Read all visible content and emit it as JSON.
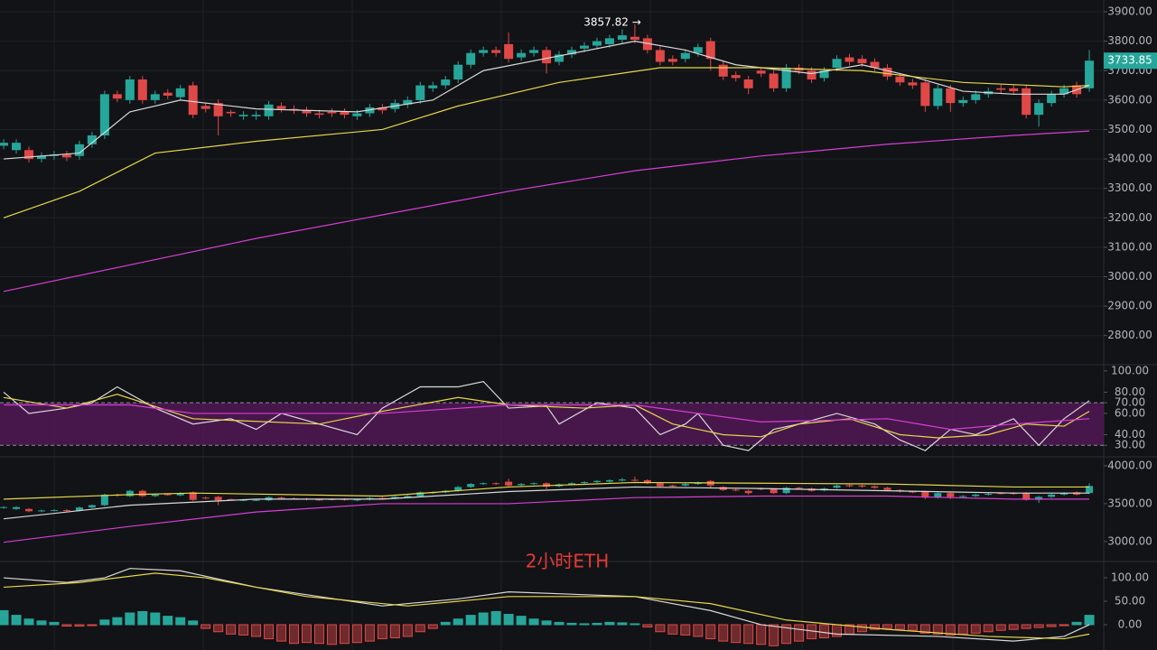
{
  "chart_data": [
    {
      "type": "candlestick",
      "annotation": "3857.82 →",
      "last_price": 3733.85,
      "up_color": "#26a69a",
      "down_color": "#e04848",
      "xlim": [
        -0.29,
        87.14
      ],
      "ylim": [
        2704,
        3940
      ],
      "grid": true,
      "yticks": [
        {
          "value": 2800,
          "label": "2800.00"
        },
        {
          "value": 2900,
          "label": "2900.00"
        },
        {
          "value": 3000,
          "label": "3000.00"
        },
        {
          "value": 3100,
          "label": "3100.00"
        },
        {
          "value": 3200,
          "label": "3200.00"
        },
        {
          "value": 3300,
          "label": "3300.00"
        },
        {
          "value": 3400,
          "label": "3400.00"
        },
        {
          "value": 3500,
          "label": "3500.00"
        },
        {
          "value": 3600,
          "label": "3600.00"
        },
        {
          "value": 3700,
          "label": "3700.00"
        },
        {
          "value": 3800,
          "label": "3800.00"
        },
        {
          "value": 3900,
          "label": "3900.00"
        }
      ],
      "open": [
        3445,
        3430,
        3430,
        3400,
        3410,
        3415,
        3410,
        3450,
        3480,
        3620,
        3600,
        3670,
        3600,
        3625,
        3610,
        3650,
        3580,
        3590,
        3560,
        3545,
        3545,
        3545,
        3580,
        3570,
        3565,
        3555,
        3560,
        3560,
        3545,
        3555,
        3575,
        3570,
        3585,
        3600,
        3640,
        3650,
        3670,
        3720,
        3760,
        3770,
        3790,
        3745,
        3760,
        3770,
        3730,
        3755,
        3775,
        3785,
        3790,
        3805,
        3815,
        3810,
        3770,
        3740,
        3740,
        3760,
        3800,
        3720,
        3685,
        3670,
        3700,
        3690,
        3640,
        3710,
        3700,
        3675,
        3710,
        3745,
        3740,
        3730,
        3710,
        3680,
        3660,
        3660,
        3580,
        3640,
        3590,
        3600,
        3620,
        3640,
        3640,
        3640,
        3550,
        3590,
        3620,
        3650,
        3640
      ],
      "high": [
        3467,
        3467,
        3442,
        3422,
        3427,
        3427,
        3462,
        3492,
        3632,
        3632,
        3682,
        3682,
        3632,
        3637,
        3652,
        3662,
        3592,
        3602,
        3567,
        3562,
        3562,
        3597,
        3592,
        3582,
        3577,
        3567,
        3572,
        3572,
        3567,
        3587,
        3587,
        3602,
        3612,
        3662,
        3662,
        3682,
        3732,
        3772,
        3782,
        3782,
        3830,
        3772,
        3782,
        3782,
        3767,
        3782,
        3797,
        3812,
        3822,
        3840,
        3857.82,
        3822,
        3782,
        3752,
        3772,
        3792,
        3812,
        3732,
        3697,
        3682,
        3712,
        3702,
        3722,
        3722,
        3712,
        3712,
        3752,
        3757,
        3752,
        3742,
        3722,
        3692,
        3672,
        3672,
        3652,
        3652,
        3612,
        3632,
        3642,
        3652,
        3652,
        3652,
        3602,
        3632,
        3652,
        3662,
        3770
      ],
      "low": [
        3433,
        3418,
        3388,
        3388,
        3398,
        3393,
        3398,
        3438,
        3468,
        3593,
        3588,
        3588,
        3588,
        3603,
        3598,
        3538,
        3558,
        3480,
        3543,
        3533,
        3533,
        3533,
        3558,
        3553,
        3543,
        3538,
        3543,
        3538,
        3533,
        3543,
        3553,
        3558,
        3573,
        3588,
        3628,
        3638,
        3658,
        3708,
        3748,
        3748,
        3728,
        3733,
        3748,
        3690,
        3718,
        3743,
        3763,
        3773,
        3778,
        3793,
        3793,
        3758,
        3718,
        3718,
        3728,
        3748,
        3700,
        3668,
        3663,
        3620,
        3678,
        3628,
        3628,
        3688,
        3658,
        3663,
        3698,
        3718,
        3713,
        3698,
        3668,
        3648,
        3638,
        3560,
        3568,
        3560,
        3578,
        3588,
        3608,
        3623,
        3618,
        3538,
        3510,
        3578,
        3608,
        3608,
        3628
      ],
      "close": [
        3455,
        3455,
        3400,
        3410,
        3415,
        3405,
        3450,
        3480,
        3620,
        3605,
        3670,
        3600,
        3620,
        3615,
        3640,
        3550,
        3570,
        3545,
        3555,
        3550,
        3550,
        3585,
        3570,
        3565,
        3555,
        3550,
        3555,
        3550,
        3555,
        3575,
        3565,
        3590,
        3600,
        3650,
        3650,
        3670,
        3720,
        3760,
        3770,
        3760,
        3740,
        3760,
        3770,
        3725,
        3755,
        3770,
        3785,
        3800,
        3810,
        3820,
        3805,
        3770,
        3730,
        3730,
        3760,
        3780,
        3740,
        3680,
        3675,
        3640,
        3690,
        3640,
        3710,
        3700,
        3670,
        3700,
        3740,
        3730,
        3725,
        3710,
        3680,
        3660,
        3650,
        3580,
        3640,
        3590,
        3600,
        3620,
        3630,
        3635,
        3630,
        3550,
        3590,
        3620,
        3640,
        3620,
        3733.85
      ],
      "series": [
        {
          "color": "#d9d9d9",
          "x": [
            0,
            6,
            10,
            14,
            20,
            28,
            34,
            38,
            44,
            50,
            54,
            58,
            64,
            68,
            72,
            76,
            80,
            84,
            86
          ],
          "values": [
            3400,
            3420,
            3560,
            3600,
            3570,
            3560,
            3600,
            3700,
            3750,
            3800,
            3770,
            3720,
            3690,
            3720,
            3680,
            3630,
            3620,
            3620,
            3650
          ]
        },
        {
          "color": "#e6d84a",
          "x": [
            0,
            6,
            12,
            20,
            30,
            36,
            44,
            52,
            60,
            68,
            76,
            84,
            86
          ],
          "values": [
            3200,
            3290,
            3420,
            3460,
            3500,
            3580,
            3660,
            3710,
            3710,
            3700,
            3660,
            3645,
            3650
          ]
        },
        {
          "color": "#d63ed6",
          "x": [
            0,
            10,
            20,
            30,
            40,
            50,
            60,
            70,
            80,
            86
          ],
          "values": [
            2950,
            3040,
            3130,
            3210,
            3290,
            3360,
            3410,
            3450,
            3480,
            3495
          ]
        }
      ]
    },
    {
      "type": "rsi",
      "xlim": [
        -0.29,
        87.14
      ],
      "ylim": [
        20,
        105
      ],
      "band": [
        30,
        70
      ],
      "yticks": [
        {
          "value": 30,
          "label": "30.00"
        },
        {
          "value": 40,
          "label": "40.00"
        },
        {
          "value": 60,
          "label": "60.00"
        },
        {
          "value": 70,
          "label": "70.00"
        },
        {
          "value": 80,
          "label": "80.00"
        },
        {
          "value": 100,
          "label": "100.00"
        }
      ],
      "series": [
        {
          "color": "#d9d9d9",
          "x": [
            0,
            2,
            5,
            7,
            9,
            12,
            15,
            18,
            20,
            22,
            25,
            28,
            30,
            33,
            36,
            38,
            40,
            43,
            44,
            47,
            50,
            52,
            54,
            55,
            57,
            59,
            61,
            63,
            66,
            69,
            71,
            73,
            75,
            77,
            80,
            82,
            84,
            86
          ],
          "values": [
            80,
            60,
            65,
            70,
            85,
            65,
            50,
            55,
            45,
            60,
            50,
            40,
            65,
            85,
            85,
            90,
            65,
            67,
            50,
            70,
            65,
            40,
            50,
            60,
            30,
            25,
            45,
            50,
            60,
            50,
            35,
            25,
            45,
            40,
            55,
            30,
            55,
            72
          ]
        },
        {
          "color": "#e6d84a",
          "x": [
            0,
            5,
            9,
            15,
            25,
            30,
            36,
            40,
            46,
            50,
            53,
            57,
            60,
            63,
            67,
            71,
            74,
            78,
            81,
            84,
            86
          ],
          "values": [
            75,
            65,
            78,
            55,
            50,
            62,
            75,
            68,
            65,
            68,
            50,
            40,
            38,
            50,
            55,
            40,
            37,
            40,
            50,
            48,
            62
          ]
        },
        {
          "color": "#d63ed6",
          "x": [
            0,
            10,
            15,
            30,
            40,
            50,
            55,
            60,
            70,
            75,
            80,
            86
          ],
          "values": [
            68,
            68,
            60,
            60,
            68,
            68,
            60,
            52,
            55,
            45,
            50,
            55
          ]
        }
      ]
    },
    {
      "type": "bands",
      "annotation": "2小时ETH",
      "xlim": [
        -0.29,
        87.14
      ],
      "ylim": [
        2760,
        4095
      ],
      "yticks": [
        {
          "value": 3000,
          "label": "3000.00"
        },
        {
          "value": 3500,
          "label": "3500.00"
        },
        {
          "value": 4000,
          "label": "4000.00"
        }
      ],
      "series": [
        {
          "color": "#e6d84a",
          "x": [
            0,
            10,
            15,
            30,
            40,
            50,
            60,
            70,
            80,
            86
          ],
          "values": [
            3560,
            3620,
            3640,
            3600,
            3720,
            3780,
            3770,
            3760,
            3720,
            3720
          ]
        },
        {
          "color": "#d9d9d9",
          "x": [
            0,
            10,
            20,
            30,
            40,
            50,
            60,
            70,
            80,
            86
          ],
          "values": [
            3300,
            3480,
            3560,
            3560,
            3660,
            3720,
            3700,
            3670,
            3640,
            3640
          ]
        },
        {
          "color": "#d63ed6",
          "x": [
            0,
            10,
            20,
            30,
            40,
            50,
            60,
            70,
            80,
            86
          ],
          "values": [
            2990,
            3200,
            3390,
            3500,
            3500,
            3580,
            3600,
            3600,
            3560,
            3560
          ]
        }
      ]
    },
    {
      "type": "macd",
      "up_color": "#26a69a",
      "down_color": "#e04848",
      "xlim": [
        -0.29,
        87.14
      ],
      "ylim": [
        -54,
        129
      ],
      "yticks": [
        {
          "value": 0,
          "label": "0.00"
        },
        {
          "value": 50,
          "label": "50.00"
        },
        {
          "value": 100,
          "label": "100.00"
        }
      ],
      "values": [
        30,
        20,
        12,
        8,
        5,
        -3,
        -3,
        -2,
        10,
        15,
        25,
        28,
        25,
        18,
        15,
        8,
        -8,
        -15,
        -20,
        -22,
        -25,
        -30,
        -35,
        -40,
        -38,
        -40,
        -42,
        -40,
        -38,
        -35,
        -30,
        -28,
        -25,
        -15,
        -8,
        5,
        12,
        20,
        25,
        28,
        22,
        18,
        12,
        8,
        5,
        3,
        2,
        3,
        5,
        4,
        2,
        -5,
        -15,
        -20,
        -22,
        -25,
        -30,
        -35,
        -38,
        -40,
        -42,
        -45,
        -40,
        -35,
        -30,
        -28,
        -25,
        -20,
        -15,
        -10,
        -8,
        -10,
        -12,
        -18,
        -20,
        -22,
        -20,
        -18,
        -15,
        -12,
        -10,
        -8,
        -6,
        -4,
        -2,
        5,
        20
      ],
      "series": [
        {
          "color": "#d9d9d9",
          "x": [
            0,
            5,
            8,
            10,
            14,
            20,
            30,
            36,
            40,
            50,
            56,
            60,
            66,
            74,
            80,
            84,
            86
          ],
          "values": [
            100,
            90,
            100,
            120,
            115,
            80,
            40,
            55,
            70,
            60,
            30,
            0,
            -20,
            -25,
            -35,
            -25,
            0
          ]
        },
        {
          "color": "#e6d84a",
          "x": [
            0,
            6,
            12,
            16,
            24,
            32,
            40,
            50,
            56,
            62,
            70,
            78,
            84,
            86
          ],
          "values": [
            80,
            90,
            110,
            100,
            60,
            40,
            60,
            60,
            45,
            10,
            -10,
            -25,
            -30,
            -20
          ]
        }
      ]
    }
  ]
}
